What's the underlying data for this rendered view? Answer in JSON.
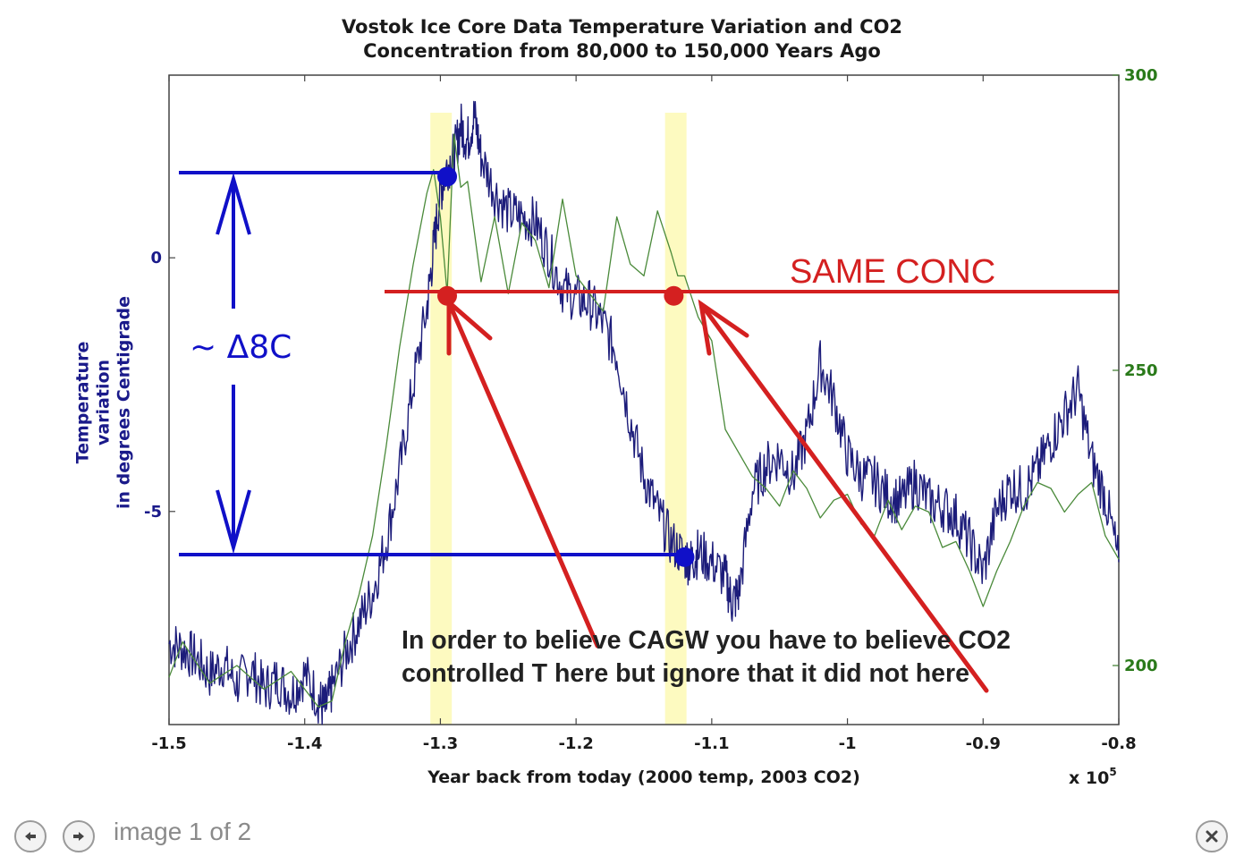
{
  "viewer": {
    "counter_text": "image 1 of 2",
    "prev_icon": "left-arrow-icon",
    "next_icon": "right-arrow-icon",
    "close_icon": "close-icon"
  },
  "chart_data": {
    "type": "line",
    "title_line1": "Vostok Ice Core Data Temperature Variation and CO2",
    "title_line2": "Concentration from 80,000 to 150,000 Years Ago",
    "xlabel": "Year back from today (2000 temp, 2003 CO2)",
    "x_multiplier_label": "x 10",
    "x_multiplier_exp": "5",
    "ylabel_lines": [
      "Temperature",
      "variation",
      "in degrees Centigrade"
    ],
    "xlim": [
      -1.5,
      -0.8
    ],
    "x_ticks": [
      "-1.5",
      "-1.4",
      "-1.3",
      "-1.2",
      "-1.1",
      "-1",
      "-0.9",
      "-0.8"
    ],
    "y_left_lim": [
      -9.2,
      3.6
    ],
    "y_left_ticks": [
      "0",
      "-5"
    ],
    "y_right_lim": [
      190,
      300
    ],
    "y_right_ticks": [
      "300",
      "250",
      "200"
    ],
    "series": [
      {
        "axis": "left",
        "color": "#1c1c7a",
        "x": [
          -1.5,
          -1.49,
          -1.48,
          -1.47,
          -1.46,
          -1.45,
          -1.44,
          -1.43,
          -1.42,
          -1.41,
          -1.4,
          -1.39,
          -1.385,
          -1.38,
          -1.37,
          -1.36,
          -1.35,
          -1.34,
          -1.33,
          -1.32,
          -1.31,
          -1.305,
          -1.3,
          -1.295,
          -1.29,
          -1.285,
          -1.28,
          -1.275,
          -1.27,
          -1.26,
          -1.25,
          -1.24,
          -1.23,
          -1.22,
          -1.21,
          -1.2,
          -1.19,
          -1.18,
          -1.17,
          -1.16,
          -1.15,
          -1.14,
          -1.13,
          -1.12,
          -1.115,
          -1.11,
          -1.1,
          -1.09,
          -1.085,
          -1.08,
          -1.07,
          -1.06,
          -1.05,
          -1.04,
          -1.03,
          -1.02,
          -1.01,
          -1,
          -0.99,
          -0.98,
          -0.97,
          -0.96,
          -0.95,
          -0.94,
          -0.93,
          -0.92,
          -0.91,
          -0.9,
          -0.89,
          -0.88,
          -0.87,
          -0.86,
          -0.85,
          -0.84,
          -0.83,
          -0.82,
          -0.81,
          -0.8
        ],
        "y": [
          -7.6,
          -7.7,
          -7.9,
          -8.2,
          -8.0,
          -8.4,
          -8.1,
          -8.5,
          -8.3,
          -8.6,
          -8.2,
          -8.7,
          -8.9,
          -8.5,
          -7.8,
          -7.2,
          -6.6,
          -5.6,
          -4.2,
          -2.5,
          -1.0,
          0.2,
          1.3,
          1.8,
          2.0,
          2.6,
          2.3,
          2.8,
          2.0,
          1.3,
          0.9,
          0.8,
          0.7,
          0.1,
          -0.6,
          -0.8,
          -0.9,
          -1.3,
          -1.9,
          -3.2,
          -4.3,
          -5.0,
          -5.6,
          -5.9,
          -6.0,
          -5.8,
          -6.0,
          -6.3,
          -6.8,
          -6.6,
          -4.6,
          -4.1,
          -3.9,
          -4.3,
          -3.5,
          -2.1,
          -2.8,
          -3.9,
          -4.3,
          -4.4,
          -4.7,
          -4.8,
          -4.4,
          -4.8,
          -4.9,
          -5.1,
          -5.6,
          -6.2,
          -5.0,
          -4.5,
          -4.6,
          -4.2,
          -3.6,
          -3.1,
          -2.6,
          -4.0,
          -4.7,
          -6.0
        ]
      },
      {
        "axis": "right",
        "color": "#4a8a3a",
        "x": [
          -1.5,
          -1.49,
          -1.47,
          -1.45,
          -1.43,
          -1.41,
          -1.39,
          -1.38,
          -1.37,
          -1.36,
          -1.35,
          -1.34,
          -1.33,
          -1.32,
          -1.31,
          -1.305,
          -1.3,
          -1.295,
          -1.29,
          -1.285,
          -1.28,
          -1.27,
          -1.26,
          -1.25,
          -1.24,
          -1.23,
          -1.22,
          -1.21,
          -1.2,
          -1.19,
          -1.18,
          -1.17,
          -1.16,
          -1.15,
          -1.14,
          -1.13,
          -1.125,
          -1.12,
          -1.11,
          -1.1,
          -1.09,
          -1.08,
          -1.07,
          -1.06,
          -1.05,
          -1.04,
          -1.03,
          -1.02,
          -1.01,
          -1,
          -0.99,
          -0.98,
          -0.97,
          -0.96,
          -0.95,
          -0.94,
          -0.93,
          -0.92,
          -0.91,
          -0.9,
          -0.89,
          -0.88,
          -0.87,
          -0.86,
          -0.85,
          -0.84,
          -0.83,
          -0.82,
          -0.81,
          -0.8
        ],
        "y": [
          198,
          204,
          197,
          200,
          196,
          199,
          193,
          194,
          204,
          212,
          222,
          237,
          254,
          268,
          280,
          284,
          276,
          263,
          290,
          281,
          282,
          265,
          276,
          263,
          275,
          272,
          264,
          279,
          266,
          263,
          260,
          276,
          268,
          266,
          277,
          270,
          266,
          266,
          259,
          255,
          240,
          236,
          232,
          230,
          227,
          233,
          230,
          225,
          228,
          229,
          224,
          222,
          228,
          223,
          227,
          226,
          220,
          221,
          216,
          210,
          216,
          221,
          227,
          231,
          230,
          226,
          229,
          231,
          222,
          218
        ]
      }
    ],
    "highlight_bands_x": [
      -1.2995,
      -1.1265
    ],
    "annotations": {
      "same_conc_label": "SAME CONC",
      "delta_label": "~ Δ8C",
      "note_line1": "In order to believe CAGW you have to believe CO2",
      "note_line2": "controlled T here but ignore that it did not here"
    },
    "annotation_points": [
      {
        "x": -1.295,
        "y_left": 1.6,
        "color": "#1010c8"
      },
      {
        "x": -1.12,
        "y_left": -5.9,
        "color": "#1010c8"
      },
      {
        "x": -1.295,
        "y_left": -0.75,
        "color": "#d42020"
      },
      {
        "x": -1.128,
        "y_left": -0.75,
        "color": "#d42020"
      }
    ],
    "grid": false,
    "legend": "none"
  }
}
